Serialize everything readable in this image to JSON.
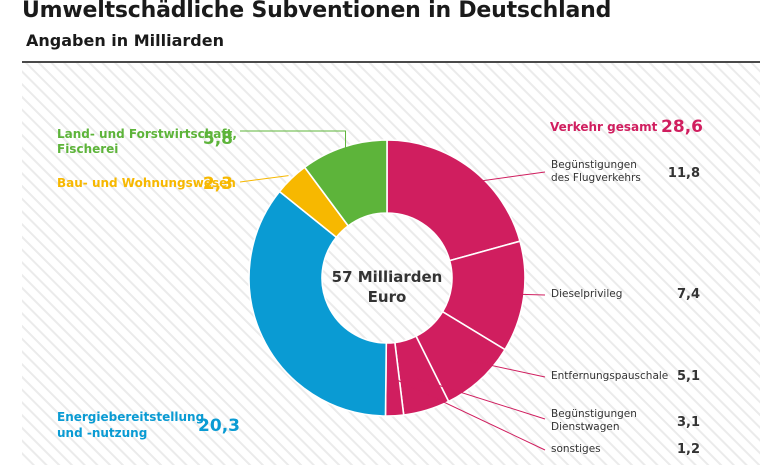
{
  "header": {
    "title": "Umweltschädliche Subventionen in Deutschland",
    "subtitle": "Angaben in Milliarden"
  },
  "center_label": [
    "57 Milliarden",
    "Euro"
  ],
  "colors": {
    "verkehr": "#d01e5f",
    "energie": "#0a9bd3",
    "bau": "#f7b800",
    "land": "#5db43a",
    "text_dark": "#333333",
    "hatch": "#ececec"
  },
  "chart_data": {
    "type": "pie",
    "total": 57,
    "unit": "Milliarden Euro",
    "groups": [
      {
        "name": "Verkehr gesamt",
        "value": "28,6"
      },
      {
        "name": "Energiebereitstellung und -nutzung",
        "value": "20,3"
      },
      {
        "name": "Bau- und Wohnungswesen",
        "value": "2,3"
      },
      {
        "name": "Land- und Forstwirtschaft, Fischerei",
        "value": "5,8"
      }
    ],
    "slices": [
      {
        "name": "Begünstigungen des Flugverkehrs",
        "group": "Verkehr gesamt",
        "value": 11.8
      },
      {
        "name": "Dieselprivileg",
        "group": "Verkehr gesamt",
        "value": 7.4
      },
      {
        "name": "Entfernungspauschale",
        "group": "Verkehr gesamt",
        "value": 5.1
      },
      {
        "name": "Begünstigungen Dienstwagen",
        "group": "Verkehr gesamt",
        "value": 3.1
      },
      {
        "name": "sonstiges",
        "group": "Verkehr gesamt",
        "value": 1.2
      },
      {
        "name": "Energiebereitstellung und -nutzung",
        "group": "Energiebereitstellung und -nutzung",
        "value": 20.3
      },
      {
        "name": "Bau- und Wohnungswesen",
        "group": "Bau- und Wohnungswesen",
        "value": 2.3
      },
      {
        "name": "Land- und Forstwirtschaft, Fischerei",
        "group": "Land- und Forstwirtschaft, Fischerei",
        "value": 5.8
      }
    ],
    "labels": {
      "verkehr": {
        "text": "Verkehr gesamt",
        "value": "28,6"
      },
      "sub": [
        {
          "lines": [
            "Begünstigungen",
            "des Flugverkehrs"
          ],
          "value": "11,8"
        },
        {
          "lines": [
            "Dieselprivileg"
          ],
          "value": "7,4"
        },
        {
          "lines": [
            "Entfernungspauschale"
          ],
          "value": "5,1"
        },
        {
          "lines": [
            "Begünstigungen",
            "Dienstwagen"
          ],
          "value": "3,1"
        },
        {
          "lines": [
            "sonstiges"
          ],
          "value": "1,2"
        }
      ],
      "land": {
        "lines": [
          "Land- und Forstwirtschaft,",
          "Fischerei"
        ],
        "value": "5,8"
      },
      "bau": {
        "lines": [
          "Bau- und Wohnungswesen"
        ],
        "value": "2,3"
      },
      "energie": {
        "lines": [
          "Energiebereitstellung",
          "und -nutzung"
        ],
        "value": "20,3"
      }
    }
  }
}
